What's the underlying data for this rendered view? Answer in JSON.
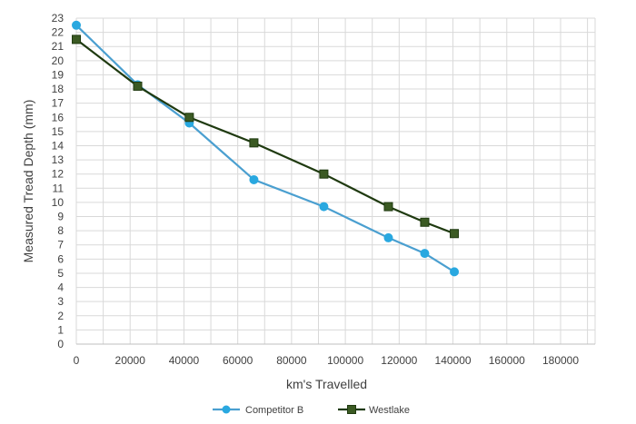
{
  "chart_data": {
    "type": "line",
    "title": "",
    "xlabel": "km's Travelled",
    "ylabel": "Measured Tread Depth (mm)",
    "xlim": [
      0,
      200000
    ],
    "ylim": [
      0,
      23
    ],
    "x_ticks": [
      "0",
      "20000",
      "40000",
      "60000",
      "80000",
      "100000",
      "120000",
      "140000",
      "160000",
      "180000"
    ],
    "y_ticks": [
      "0",
      "1",
      "2",
      "3",
      "4",
      "5",
      "6",
      "7",
      "8",
      "9",
      "10",
      "11",
      "12",
      "13",
      "14",
      "15",
      "16",
      "17",
      "18",
      "19",
      "20",
      "21",
      "22",
      "23"
    ],
    "grid": true,
    "legend_position": "bottom",
    "series": [
      {
        "name": "Competitor B",
        "color": "#4a9fd0",
        "marker": "circle",
        "points": [
          [
            0,
            22.5
          ],
          [
            22800,
            18.3
          ],
          [
            42000,
            15.6
          ],
          [
            66000,
            11.6
          ],
          [
            92000,
            9.7
          ],
          [
            116000,
            7.5
          ],
          [
            129500,
            6.4
          ],
          [
            140500,
            5.1
          ]
        ]
      },
      {
        "name": "Westlake",
        "color": "#1f3a10",
        "marker_color": "#3b5a23",
        "marker": "square",
        "points": [
          [
            0,
            21.5
          ],
          [
            22800,
            18.2
          ],
          [
            42000,
            16.0
          ],
          [
            66000,
            14.2
          ],
          [
            92000,
            12.0
          ],
          [
            116000,
            9.7
          ],
          [
            129500,
            8.6
          ],
          [
            140500,
            7.8
          ]
        ]
      }
    ]
  }
}
